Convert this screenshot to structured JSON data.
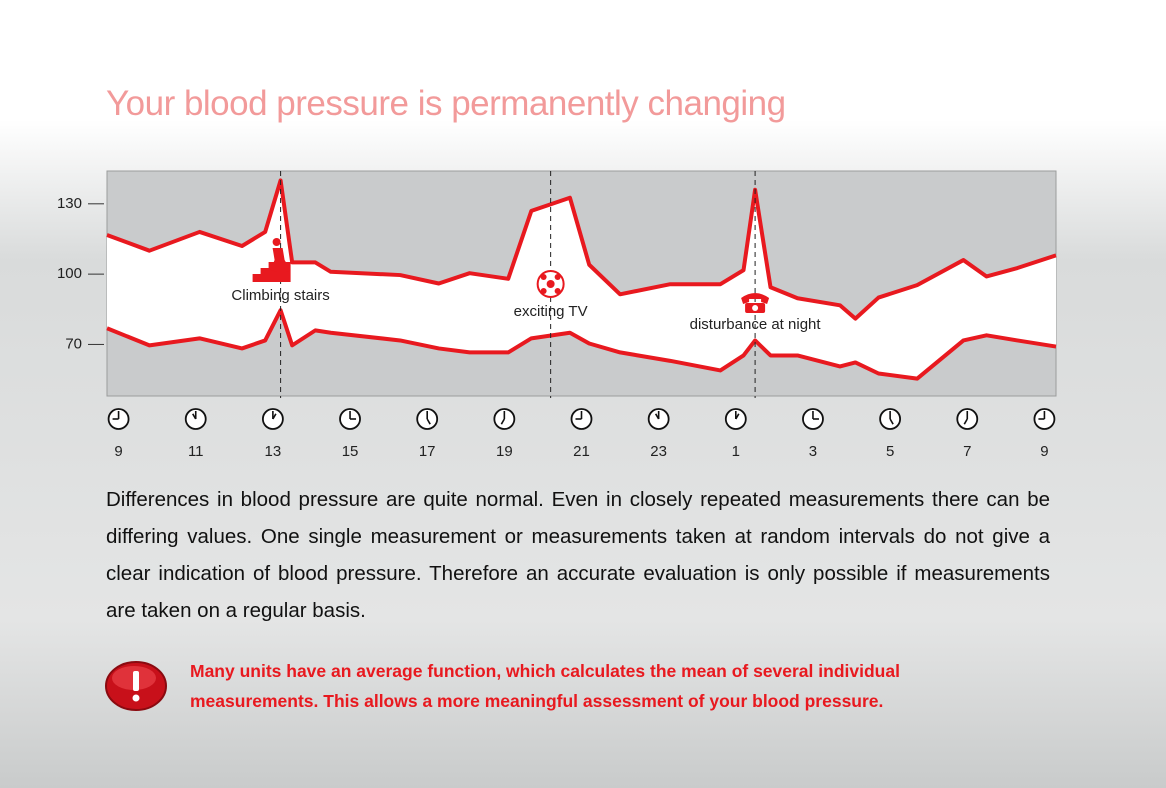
{
  "title": "Your blood pressure is permanently changing",
  "chart_data": {
    "type": "line",
    "xlim": [
      8.7,
      33.3
    ],
    "ylim": [
      48,
      144
    ],
    "yticks": [
      70,
      100,
      130
    ],
    "xticks": [
      9,
      11,
      13,
      15,
      17,
      19,
      21,
      23,
      {
        "value": 25,
        "label": "1"
      },
      {
        "value": 27,
        "label": "3"
      },
      {
        "value": 29,
        "label": "5"
      },
      {
        "value": 31,
        "label": "7"
      },
      {
        "value": 33,
        "label": "9"
      }
    ],
    "x": [
      8.7,
      9.8,
      11.1,
      12.2,
      12.8,
      13.2,
      13.5,
      14.1,
      14.5,
      16.3,
      17.3,
      18.1,
      19.1,
      19.7,
      20.7,
      21.2,
      22.0,
      23.3,
      24.6,
      25.2,
      25.5,
      25.9,
      26.6,
      27.7,
      28.1,
      28.7,
      29.7,
      30.9,
      31.5,
      32.3,
      33.3
    ],
    "series": [
      {
        "color": "#e8191f",
        "values": [
          116.7,
          110,
          118,
          112,
          118,
          140,
          105,
          105,
          101,
          99.6,
          96,
          100.4,
          98,
          127,
          132.6,
          104,
          91.4,
          95.7,
          95.7,
          101.7,
          136,
          94.4,
          89.7,
          86.7,
          81,
          90,
          95.3,
          106,
          99,
          102.6,
          108
        ]
      },
      {
        "color": "#e8191f",
        "values": [
          76.9,
          69.6,
          72.6,
          68.3,
          71.7,
          84.6,
          69.6,
          76,
          75,
          71.7,
          68.3,
          66.6,
          66.6,
          72.6,
          75,
          70.4,
          66.6,
          63,
          58.9,
          65.3,
          71.7,
          65.3,
          65.3,
          60.6,
          62.3,
          57.6,
          55.4,
          71.7,
          73.9,
          71.7,
          69.1
        ]
      }
    ],
    "annotations": [
      {
        "text": "Climbing stairs",
        "x": 13.2
      },
      {
        "text": "exciting TV",
        "x": 20.2
      },
      {
        "text": "disturbance at night",
        "x": 25.5
      }
    ]
  },
  "body": "Differences in blood pressure are quite normal. Even in closely repeated measurements there can be differing values. One single measurement or measurements taken at random intervals do not give a clear indication of blood pressure. Therefore an accurate evaluation is only pos­sible if measurements are taken on a regular basis.",
  "note": "Many units have an average function, which calculates the mean of several individual measurements. This allows a more meaningful assessment of your blood pressure."
}
